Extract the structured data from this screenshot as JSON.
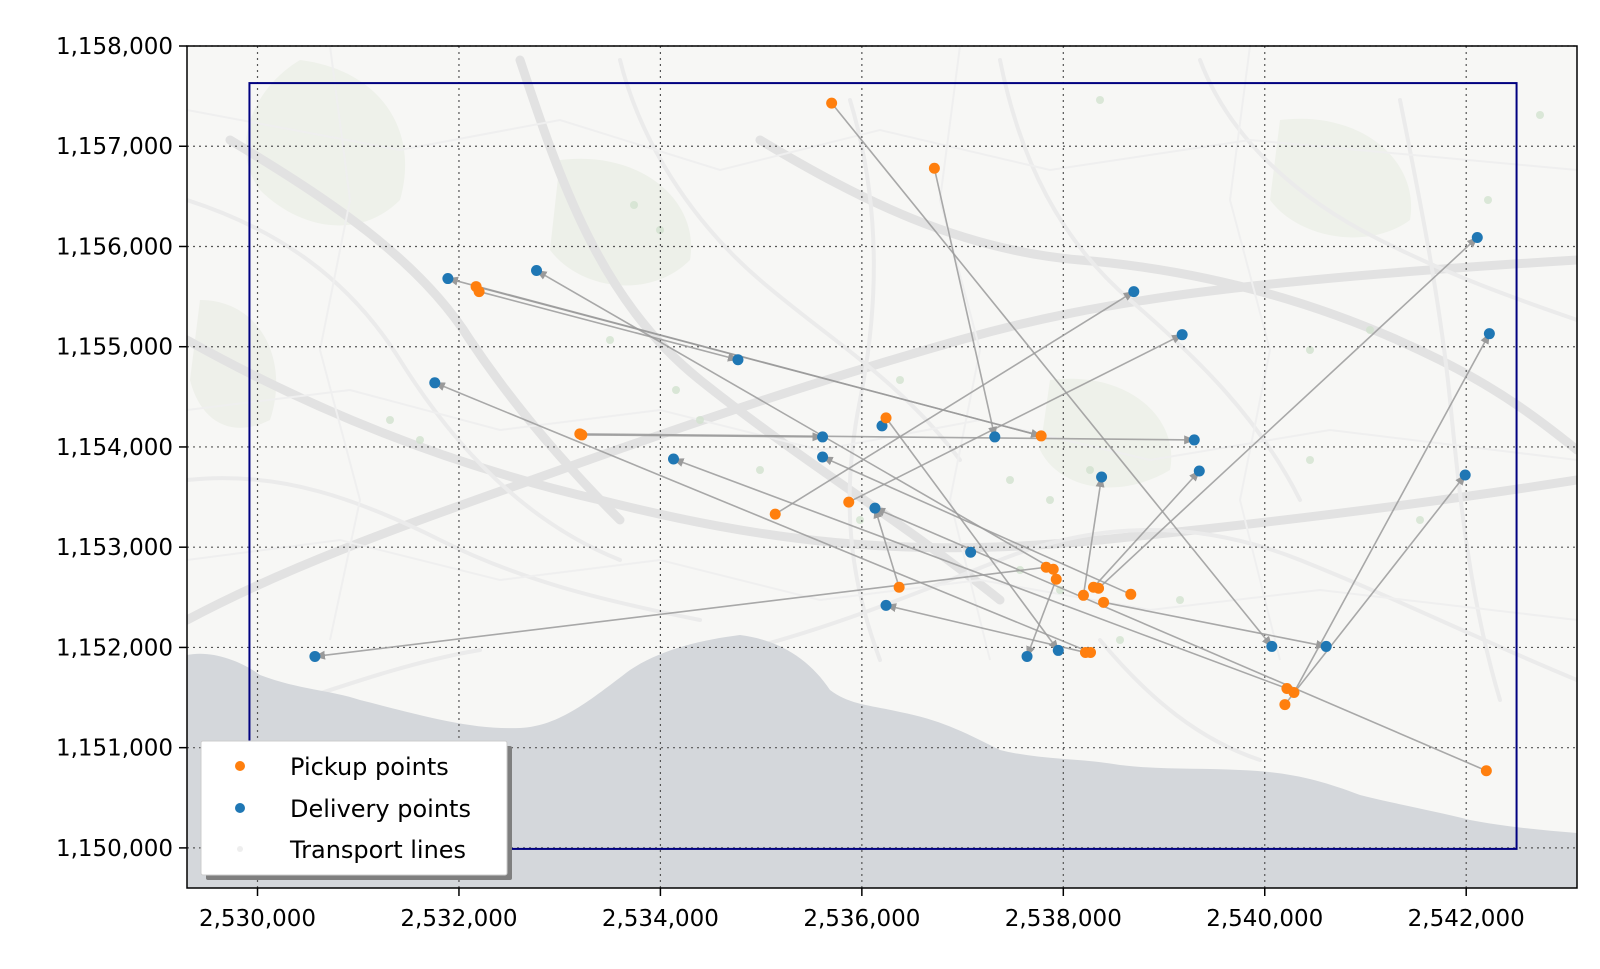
{
  "chart_data": {
    "type": "scatter",
    "title": "",
    "xlabel": "",
    "ylabel": "",
    "xlim": [
      2529300,
      2543100
    ],
    "ylim": [
      1149600,
      1158000
    ],
    "grid": true,
    "legend_position": "lower-left",
    "x_ticks": [
      2530000,
      2532000,
      2534000,
      2536000,
      2538000,
      2540000,
      2542000
    ],
    "y_ticks": [
      1150000,
      1151000,
      1152000,
      1153000,
      1154000,
      1155000,
      1156000,
      1157000,
      1158000
    ],
    "x_tick_labels": [
      "2,530,000",
      "2,532,000",
      "2,534,000",
      "2,536,000",
      "2,538,000",
      "2,540,000",
      "2,542,000"
    ],
    "y_tick_labels": [
      "1,150,000",
      "1,151,000",
      "1,152,000",
      "1,153,000",
      "1,154,000",
      "1,155,000",
      "1,156,000",
      "1,157,000",
      "1,158,000"
    ],
    "bounding_box": {
      "x": [
        2529920,
        2542500
      ],
      "y": [
        1149990,
        1157630
      ],
      "color": "#000080"
    },
    "series": [
      {
        "name": "Pickup points",
        "color": "#ff7f0e",
        "points": [
          [
            2535700,
            1157430
          ],
          [
            2536720,
            1156780
          ],
          [
            2532170,
            1155600
          ],
          [
            2532200,
            1155550
          ],
          [
            2533200,
            1154130
          ],
          [
            2533220,
            1154120
          ],
          [
            2536240,
            1154290
          ],
          [
            2537780,
            1154110
          ],
          [
            2535870,
            1153450
          ],
          [
            2535140,
            1153330
          ],
          [
            2536370,
            1152600
          ],
          [
            2537830,
            1152800
          ],
          [
            2537900,
            1152780
          ],
          [
            2537930,
            1152680
          ],
          [
            2538200,
            1152520
          ],
          [
            2538300,
            1152600
          ],
          [
            2538350,
            1152590
          ],
          [
            2538400,
            1152450
          ],
          [
            2538670,
            1152530
          ],
          [
            2538220,
            1151950
          ],
          [
            2538270,
            1151950
          ],
          [
            2540220,
            1151590
          ],
          [
            2540290,
            1151550
          ],
          [
            2540200,
            1151430
          ],
          [
            2542200,
            1150770
          ]
        ]
      },
      {
        "name": "Delivery points",
        "color": "#1f77b4",
        "points": [
          [
            2531890,
            1155680
          ],
          [
            2532770,
            1155760
          ],
          [
            2538700,
            1155550
          ],
          [
            2539180,
            1155120
          ],
          [
            2534770,
            1154870
          ],
          [
            2531760,
            1154640
          ],
          [
            2535610,
            1154100
          ],
          [
            2536200,
            1154210
          ],
          [
            2537320,
            1154100
          ],
          [
            2539300,
            1154070
          ],
          [
            2534130,
            1153880
          ],
          [
            2535610,
            1153900
          ],
          [
            2539350,
            1153760
          ],
          [
            2538380,
            1153700
          ],
          [
            2536130,
            1153390
          ],
          [
            2537080,
            1152950
          ],
          [
            2536240,
            1152420
          ],
          [
            2537640,
            1151910
          ],
          [
            2537950,
            1151970
          ],
          [
            2540070,
            1152010
          ],
          [
            2540610,
            1152010
          ],
          [
            2530570,
            1151910
          ],
          [
            2542110,
            1156090
          ],
          [
            2542230,
            1155130
          ],
          [
            2541990,
            1153720
          ]
        ]
      },
      {
        "name": "Transport lines",
        "color": "#999999",
        "segments": [
          [
            [
              2535700,
              1157430
            ],
            [
              2540070,
              1152010
            ]
          ],
          [
            [
              2536720,
              1156780
            ],
            [
              2537320,
              1154100
            ]
          ],
          [
            [
              2532170,
              1155600
            ],
            [
              2537780,
              1154110
            ]
          ],
          [
            [
              2532200,
              1155550
            ],
            [
              2534770,
              1154870
            ]
          ],
          [
            [
              2537780,
              1154110
            ],
            [
              2531890,
              1155680
            ]
          ],
          [
            [
              2533200,
              1154130
            ],
            [
              2539300,
              1154070
            ]
          ],
          [
            [
              2533220,
              1154120
            ],
            [
              2535610,
              1154100
            ]
          ],
          [
            [
              2536240,
              1154290
            ],
            [
              2537950,
              1151970
            ]
          ],
          [
            [
              2535140,
              1153330
            ],
            [
              2538700,
              1155550
            ]
          ],
          [
            [
              2535870,
              1153450
            ],
            [
              2539180,
              1155120
            ]
          ],
          [
            [
              2536370,
              1152600
            ],
            [
              2536130,
              1153390
            ]
          ],
          [
            [
              2537830,
              1152800
            ],
            [
              2530570,
              1151910
            ]
          ],
          [
            [
              2537900,
              1152780
            ],
            [
              2532770,
              1155760
            ]
          ],
          [
            [
              2537930,
              1152680
            ],
            [
              2537640,
              1151910
            ]
          ],
          [
            [
              2538200,
              1152520
            ],
            [
              2538380,
              1153700
            ]
          ],
          [
            [
              2538300,
              1152600
            ],
            [
              2539350,
              1153760
            ]
          ],
          [
            [
              2538350,
              1152590
            ],
            [
              2542110,
              1156090
            ]
          ],
          [
            [
              2538670,
              1152530
            ],
            [
              2535610,
              1153900
            ]
          ],
          [
            [
              2538400,
              1152450
            ],
            [
              2540610,
              1152010
            ]
          ],
          [
            [
              2538220,
              1151950
            ],
            [
              2536240,
              1152420
            ]
          ],
          [
            [
              2540220,
              1151590
            ],
            [
              2534130,
              1153880
            ]
          ],
          [
            [
              2540290,
              1151550
            ],
            [
              2542230,
              1155130
            ]
          ],
          [
            [
              2540200,
              1151430
            ],
            [
              2541990,
              1153720
            ]
          ],
          [
            [
              2542200,
              1150770
            ],
            [
              2536130,
              1153390
            ]
          ],
          [
            [
              2538270,
              1151950
            ],
            [
              2531760,
              1154640
            ]
          ]
        ]
      }
    ],
    "legend": [
      "Pickup points",
      "Delivery points",
      "Transport lines"
    ]
  }
}
